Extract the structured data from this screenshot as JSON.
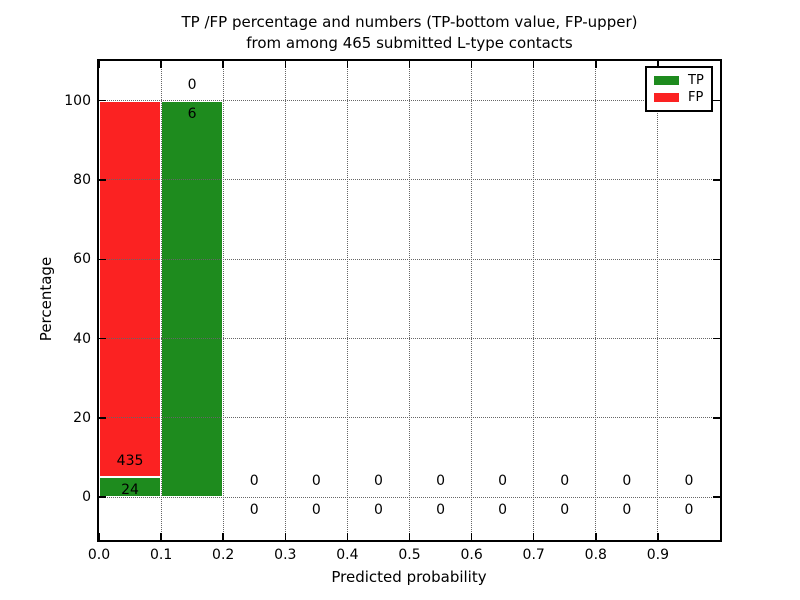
{
  "title": {
    "line1": "TP /FP percentage and numbers (TP-bottom value, FP-upper)",
    "line2": "from among 465 submitted L-type contacts"
  },
  "colors": {
    "tp_green": "#1e8b1e",
    "fp_red": "#fb2222",
    "grid": "#666666",
    "text": "#000000",
    "background": "#ffffff"
  },
  "chart_data": {
    "type": "bar",
    "stacked": true,
    "title": "TP /FP percentage and numbers (TP-bottom value, FP-upper)\nfrom among 465 submitted L-type contacts",
    "xlabel": "Predicted probability",
    "ylabel": "Percentage",
    "xlim": [
      0.0,
      1.0
    ],
    "ylim": [
      -10.8,
      110
    ],
    "grid": "dotted both axes",
    "legend_position": "upper right",
    "total_contacts": 465,
    "bin_width": 0.1,
    "x_tick_values": [
      0.0,
      0.1,
      0.2,
      0.3,
      0.4,
      0.5,
      0.6,
      0.7,
      0.8,
      0.9
    ],
    "x_tick_labels": [
      "0.0",
      "0.1",
      "0.2",
      "0.3",
      "0.4",
      "0.5",
      "0.6",
      "0.7",
      "0.8",
      "0.9"
    ],
    "y_tick_values": [
      0,
      20,
      40,
      60,
      80,
      100
    ],
    "y_tick_labels": [
      "0",
      "20",
      "40",
      "60",
      "80",
      "100"
    ],
    "legend": {
      "entries": [
        {
          "label": "TP",
          "color": "#1e8b1e"
        },
        {
          "label": "FP",
          "color": "#fb2222"
        }
      ]
    },
    "series_note": "per-bin stacked percentage, TP bottom / FP top; labels show raw counts (TP bottom value, FP upper value)",
    "bins": [
      {
        "x_start": 0.0,
        "x_end": 0.1,
        "tp_count": 24,
        "fp_count": 435,
        "tp_pct": 5.2,
        "fp_pct": 94.8
      },
      {
        "x_start": 0.1,
        "x_end": 0.2,
        "tp_count": 6,
        "fp_count": 0,
        "tp_pct": 100,
        "fp_pct": 0
      },
      {
        "x_start": 0.2,
        "x_end": 0.3,
        "tp_count": 0,
        "fp_count": 0,
        "tp_pct": 0,
        "fp_pct": 0
      },
      {
        "x_start": 0.3,
        "x_end": 0.4,
        "tp_count": 0,
        "fp_count": 0,
        "tp_pct": 0,
        "fp_pct": 0
      },
      {
        "x_start": 0.4,
        "x_end": 0.5,
        "tp_count": 0,
        "fp_count": 0,
        "tp_pct": 0,
        "fp_pct": 0
      },
      {
        "x_start": 0.5,
        "x_end": 0.6,
        "tp_count": 0,
        "fp_count": 0,
        "tp_pct": 0,
        "fp_pct": 0
      },
      {
        "x_start": 0.6,
        "x_end": 0.7,
        "tp_count": 0,
        "fp_count": 0,
        "tp_pct": 0,
        "fp_pct": 0
      },
      {
        "x_start": 0.7,
        "x_end": 0.8,
        "tp_count": 0,
        "fp_count": 0,
        "tp_pct": 0,
        "fp_pct": 0
      },
      {
        "x_start": 0.8,
        "x_end": 0.9,
        "tp_count": 0,
        "fp_count": 0,
        "tp_pct": 0,
        "fp_pct": 0
      },
      {
        "x_start": 0.9,
        "x_end": 1.0,
        "tp_count": 0,
        "fp_count": 0,
        "tp_pct": 0,
        "fp_pct": 0
      }
    ]
  }
}
